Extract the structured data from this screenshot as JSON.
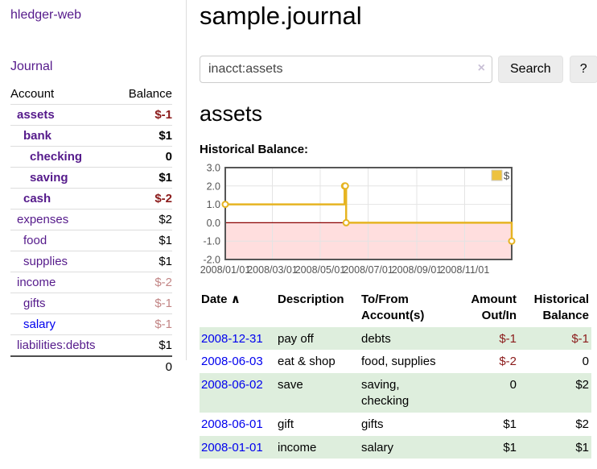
{
  "colors": {
    "link_purple": "#551a8b",
    "link_blue": "#0000ee",
    "neg_strong": "#8b1a1a",
    "neg_faded": "#c28585",
    "row_green": "#deeedd",
    "chart_line": "#e6b422",
    "chart_legend_fill": "#edc240",
    "chart_neg_region": "#ffdede",
    "chart_zero_line": "#8b0000"
  },
  "sidebar": {
    "brand": "hledger-web",
    "journal_link": "Journal",
    "accounts": {
      "header_account": "Account",
      "header_balance": "Balance",
      "rows": [
        {
          "name": "assets",
          "balance": "$-1",
          "indent": 1,
          "bold": true,
          "balance_style": "neg-strong"
        },
        {
          "name": "bank",
          "balance": "$1",
          "indent": 2,
          "bold": true,
          "balance_style": ""
        },
        {
          "name": "checking",
          "balance": "0",
          "indent": 3,
          "bold": true,
          "balance_style": ""
        },
        {
          "name": "saving",
          "balance": "$1",
          "indent": 3,
          "bold": true,
          "balance_style": ""
        },
        {
          "name": "cash",
          "balance": "$-2",
          "indent": 2,
          "bold": true,
          "balance_style": "neg-strong"
        },
        {
          "name": "expenses",
          "balance": "$2",
          "indent": 1,
          "bold": false,
          "balance_style": ""
        },
        {
          "name": "food",
          "balance": "$1",
          "indent": 2,
          "bold": false,
          "balance_style": ""
        },
        {
          "name": "supplies",
          "balance": "$1",
          "indent": 2,
          "bold": false,
          "balance_style": ""
        },
        {
          "name": "income",
          "balance": "$-2",
          "indent": 1,
          "bold": false,
          "balance_style": "neg-faded"
        },
        {
          "name": "gifts",
          "balance": "$-1",
          "indent": 2,
          "bold": false,
          "balance_style": "neg-faded"
        },
        {
          "name": "salary",
          "balance": "$-1",
          "indent": 2,
          "bold": false,
          "balance_style": "neg-faded",
          "link_blue": true
        },
        {
          "name": "liabilities:debts",
          "balance": "$1",
          "indent": 1,
          "bold": false,
          "balance_style": ""
        }
      ],
      "total": "0"
    }
  },
  "main": {
    "title": "sample.journal",
    "search": {
      "value": "inacct:assets",
      "clear_icon": "×",
      "search_button": "Search",
      "help_button": "?"
    },
    "account_heading": "assets",
    "chart_heading": "Historical Balance:"
  },
  "chart_data": {
    "type": "line",
    "title": "Historical Balance",
    "series": [
      {
        "name": "$",
        "step": true,
        "points": [
          {
            "date": "2008-01-01",
            "value": 1
          },
          {
            "date": "2008-06-01",
            "value": 2
          },
          {
            "date": "2008-06-02",
            "value": 2
          },
          {
            "date": "2008-06-03",
            "value": 0
          },
          {
            "date": "2008-12-31",
            "value": -1
          }
        ]
      }
    ],
    "x_range": [
      "2008-01-01",
      "2008-12-31"
    ],
    "ylim": [
      -2,
      3
    ],
    "y_ticks": [
      3,
      2,
      1,
      0,
      -1,
      -2
    ],
    "y_tick_labels": [
      "3.0",
      "2.0",
      "1.0",
      "0.0",
      "-1.0",
      "-2.0"
    ],
    "x_ticks": [
      "2008-01-01",
      "2008-03-01",
      "2008-05-01",
      "2008-07-01",
      "2008-09-01",
      "2008-11-01"
    ],
    "x_tick_labels": [
      "2008/01/01",
      "2008/03/01",
      "2008/05/01",
      "2008/07/01",
      "2008/09/01",
      "2008/11/01"
    ],
    "legend": {
      "label": "$",
      "position": "top-right"
    },
    "grid": true,
    "negative_region": true
  },
  "register": {
    "headers": {
      "date": "Date",
      "sort_icon": "∧",
      "description": "Description",
      "tofrom_lines": [
        "To/From",
        "Account(s)"
      ],
      "amount_lines": [
        "Amount",
        "Out/In"
      ],
      "balance_lines": [
        "Historical",
        "Balance"
      ]
    },
    "rows": [
      {
        "date": "2008-12-31",
        "description": "pay off",
        "accounts_lines": [
          "debts"
        ],
        "amount": "$-1",
        "amount_neg": true,
        "balance": "$-1",
        "balance_neg": true
      },
      {
        "date": "2008-06-03",
        "description": "eat & shop",
        "accounts_lines": [
          "food, supplies"
        ],
        "amount": "$-2",
        "amount_neg": true,
        "balance": "0",
        "balance_neg": false
      },
      {
        "date": "2008-06-02",
        "description": "save",
        "accounts_lines": [
          "saving,",
          "checking"
        ],
        "amount": "0",
        "amount_neg": false,
        "balance": "$2",
        "balance_neg": false
      },
      {
        "date": "2008-06-01",
        "description": "gift",
        "accounts_lines": [
          "gifts"
        ],
        "amount": "$1",
        "amount_neg": false,
        "balance": "$2",
        "balance_neg": false
      },
      {
        "date": "2008-01-01",
        "description": "income",
        "accounts_lines": [
          "salary"
        ],
        "amount": "$1",
        "amount_neg": false,
        "balance": "$1",
        "balance_neg": false
      }
    ]
  }
}
